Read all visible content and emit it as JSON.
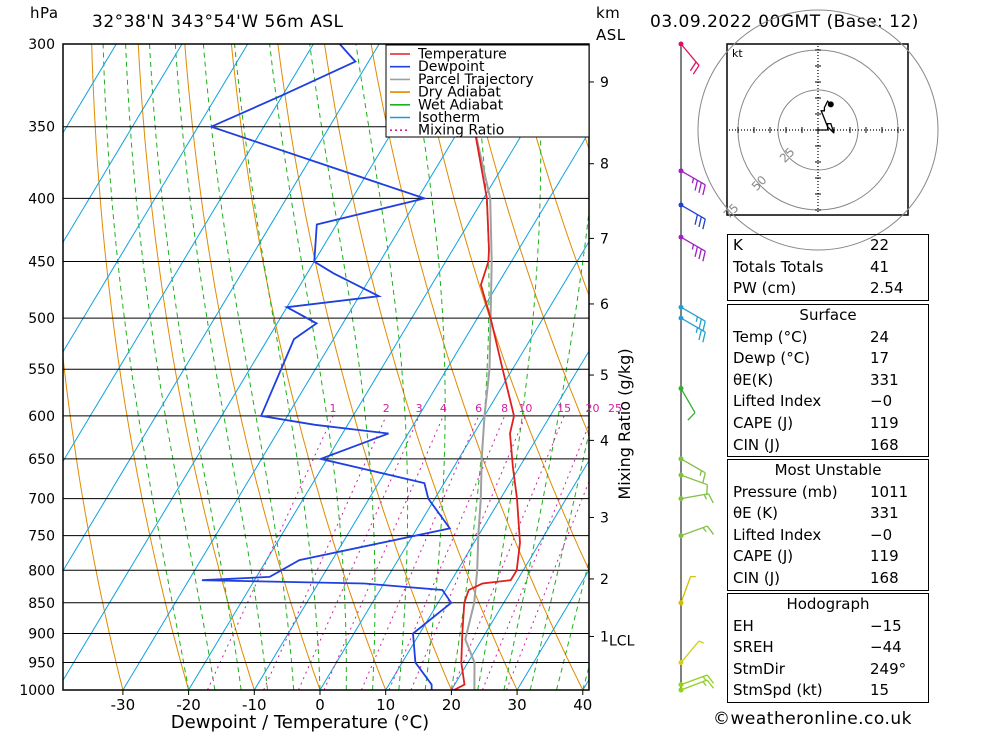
{
  "header": {
    "pressure_unit": "hPa",
    "location": "32°38'N  343°54'W  56m  ASL",
    "height_unit_1": "km",
    "height_unit_2": "ASL",
    "datetime": "03.09.2022  00GMT  (Base: 12)"
  },
  "chart_data": {
    "type": "line",
    "title": "32°38'N  343°54'W  56m  ASL",
    "xlabel": "Dewpoint / Temperature (°C)",
    "ylabel": "hPa",
    "mixing_ratio_label": "Mixing Ratio (g/kg)",
    "x_ticks": [
      -30,
      -20,
      -10,
      0,
      10,
      20,
      30,
      40
    ],
    "pressure_levels": [
      300,
      350,
      400,
      450,
      500,
      550,
      600,
      650,
      700,
      750,
      800,
      850,
      900,
      950,
      1000
    ],
    "km_ticks": [
      {
        "label": "9",
        "p": 322
      },
      {
        "label": "8",
        "p": 375
      },
      {
        "label": "7",
        "p": 431
      },
      {
        "label": "6",
        "p": 487
      },
      {
        "label": "5",
        "p": 556
      },
      {
        "label": "4",
        "p": 628
      },
      {
        "label": "3",
        "p": 725
      },
      {
        "label": "2",
        "p": 813
      },
      {
        "label": "1",
        "p": 905
      }
    ],
    "lcl": {
      "label": "LCL",
      "p": 910
    },
    "mixing_ratio_values": [
      "1",
      "2",
      "3",
      "4",
      "6",
      "8",
      "10",
      "15",
      "20",
      "25"
    ],
    "legend": [
      "Temperature",
      "Dewpoint",
      "Parcel Trajectory",
      "Dry Adiabat",
      "Wet Adiabat",
      "Isotherm",
      "Mixing Ratio"
    ],
    "legend_placement": "top-right",
    "colors": {
      "temperature": "#e02020",
      "dewpoint": "#1f3fe0",
      "parcel": "#a0a0a0",
      "dry_adiabat": "#e08a00",
      "wet_adiabat": "#1cb01c",
      "isotherm": "#10a0e0",
      "mixing_ratio": "#d020a0"
    },
    "temperature_profile": [
      {
        "p": 1000,
        "t": 20.4
      },
      {
        "p": 990,
        "t": 21.5
      },
      {
        "p": 950,
        "t": 19.0
      },
      {
        "p": 900,
        "t": 16.5
      },
      {
        "p": 850,
        "t": 14.0
      },
      {
        "p": 830,
        "t": 13.5
      },
      {
        "p": 820,
        "t": 15.0
      },
      {
        "p": 815,
        "t": 19.0
      },
      {
        "p": 800,
        "t": 19.0
      },
      {
        "p": 760,
        "t": 17.0
      },
      {
        "p": 700,
        "t": 12.5
      },
      {
        "p": 660,
        "t": 9.0
      },
      {
        "p": 620,
        "t": 5.5
      },
      {
        "p": 600,
        "t": 4.5
      },
      {
        "p": 550,
        "t": -1.5
      },
      {
        "p": 500,
        "t": -8.0
      },
      {
        "p": 470,
        "t": -12.5
      },
      {
        "p": 450,
        "t": -13.5
      },
      {
        "p": 440,
        "t": -14.5
      },
      {
        "p": 400,
        "t": -19.5
      },
      {
        "p": 350,
        "t": -28.0
      },
      {
        "p": 300,
        "t": -36.0
      }
    ],
    "dewpoint_profile": [
      {
        "p": 1000,
        "t": 17.0
      },
      {
        "p": 990,
        "t": 16.5
      },
      {
        "p": 950,
        "t": 12.0
      },
      {
        "p": 900,
        "t": 9.0
      },
      {
        "p": 850,
        "t": 12.0
      },
      {
        "p": 830,
        "t": 9.5
      },
      {
        "p": 820,
        "t": -3.0
      },
      {
        "p": 815,
        "t": -28.0
      },
      {
        "p": 810,
        "t": -18.0
      },
      {
        "p": 785,
        "t": -15.0
      },
      {
        "p": 740,
        "t": 5.0
      },
      {
        "p": 700,
        "t": -1.0
      },
      {
        "p": 680,
        "t": -3.0
      },
      {
        "p": 650,
        "t": -21.0
      },
      {
        "p": 620,
        "t": -13.0
      },
      {
        "p": 610,
        "t": -25.0
      },
      {
        "p": 600,
        "t": -34.0
      },
      {
        "p": 520,
        "t": -36.0
      },
      {
        "p": 505,
        "t": -34.0
      },
      {
        "p": 490,
        "t": -40.0
      },
      {
        "p": 480,
        "t": -27.0
      },
      {
        "p": 460,
        "t": -36.0
      },
      {
        "p": 450,
        "t": -40.0
      },
      {
        "p": 420,
        "t": -43.0
      },
      {
        "p": 400,
        "t": -29.0
      },
      {
        "p": 350,
        "t": -68.0
      },
      {
        "p": 330,
        "t": -60.0
      },
      {
        "p": 310,
        "t": -52.0
      },
      {
        "p": 300,
        "t": -56.0
      }
    ],
    "parcel_profile": [
      {
        "p": 1000,
        "t": 23.5
      },
      {
        "p": 950,
        "t": 21.0
      },
      {
        "p": 910,
        "t": 17.5
      },
      {
        "p": 850,
        "t": 15.5
      },
      {
        "p": 800,
        "t": 13.0
      },
      {
        "p": 750,
        "t": 10.0
      },
      {
        "p": 700,
        "t": 7.0
      },
      {
        "p": 650,
        "t": 3.5
      },
      {
        "p": 600,
        "t": 0.0
      },
      {
        "p": 550,
        "t": -3.5
      },
      {
        "p": 500,
        "t": -8.0
      },
      {
        "p": 450,
        "t": -13.0
      },
      {
        "p": 400,
        "t": -19.0
      },
      {
        "p": 350,
        "t": -28.0
      },
      {
        "p": 300,
        "t": -38.0
      }
    ],
    "wind_barbs": [
      {
        "p": 1000,
        "dir": 249,
        "kt": 15,
        "color": "#90d020"
      },
      {
        "p": 990,
        "dir": 250,
        "kt": 15,
        "color": "#90d020"
      },
      {
        "p": 950,
        "dir": 220,
        "kt": 5,
        "color": "#d0d020"
      },
      {
        "p": 850,
        "dir": 200,
        "kt": 5,
        "color": "#d0c000"
      },
      {
        "p": 750,
        "dir": 250,
        "kt": 15,
        "color": "#80c040"
      },
      {
        "p": 700,
        "dir": 260,
        "kt": 15,
        "color": "#80c040"
      },
      {
        "p": 670,
        "dir": 290,
        "kt": 10,
        "color": "#80c040"
      },
      {
        "p": 650,
        "dir": 300,
        "kt": 15,
        "color": "#80c040"
      },
      {
        "p": 570,
        "dir": 330,
        "kt": 10,
        "color": "#30b030"
      },
      {
        "p": 500,
        "dir": 300,
        "kt": 25,
        "color": "#20a0d0"
      },
      {
        "p": 490,
        "dir": 300,
        "kt": 25,
        "color": "#20a0d0"
      },
      {
        "p": 430,
        "dir": 300,
        "kt": 35,
        "color": "#a020c0"
      },
      {
        "p": 405,
        "dir": 300,
        "kt": 30,
        "color": "#2040d0"
      },
      {
        "p": 380,
        "dir": 300,
        "kt": 35,
        "color": "#a020c0"
      },
      {
        "p": 300,
        "dir": 320,
        "kt": 20,
        "color": "#e01060"
      }
    ],
    "hodograph": {
      "unit": "kt",
      "ring_labels": [
        "25",
        "50",
        "75"
      ],
      "points": [
        [
          0,
          0
        ],
        [
          6,
          0
        ],
        [
          6,
          4
        ],
        [
          8,
          4
        ],
        [
          10,
          -2
        ],
        [
          6,
          2
        ],
        [
          2,
          12
        ],
        [
          4,
          12
        ],
        [
          4,
          14
        ],
        [
          6,
          18
        ],
        [
          8,
          16
        ]
      ]
    }
  },
  "indices": [
    {
      "label": "K",
      "value": "22"
    },
    {
      "label": "Totals Totals",
      "value": "41"
    },
    {
      "label": "PW (cm)",
      "value": "2.54"
    }
  ],
  "surface": {
    "title": "Surface",
    "rows": [
      {
        "label": "Temp (°C)",
        "value": "24"
      },
      {
        "label": "Dewp (°C)",
        "value": "17"
      },
      {
        "label": "θE(K)",
        "value": "331"
      },
      {
        "label": "Lifted Index",
        "value": "−0"
      },
      {
        "label": "CAPE (J)",
        "value": "119"
      },
      {
        "label": "CIN (J)",
        "value": "168"
      }
    ]
  },
  "most_unstable": {
    "title": "Most Unstable",
    "rows": [
      {
        "label": "Pressure (mb)",
        "value": "1011"
      },
      {
        "label": "θE (K)",
        "value": "331"
      },
      {
        "label": "Lifted Index",
        "value": "−0"
      },
      {
        "label": "CAPE (J)",
        "value": "119"
      },
      {
        "label": "CIN (J)",
        "value": "168"
      }
    ]
  },
  "hodograph_table": {
    "title": "Hodograph",
    "rows": [
      {
        "label": "EH",
        "value": "−15"
      },
      {
        "label": "SREH",
        "value": "−44"
      },
      {
        "label": "StmDir",
        "value": "249°"
      },
      {
        "label": "StmSpd (kt)",
        "value": "15"
      }
    ]
  },
  "footer": {
    "copyright": "©weatheronline.co.uk"
  }
}
